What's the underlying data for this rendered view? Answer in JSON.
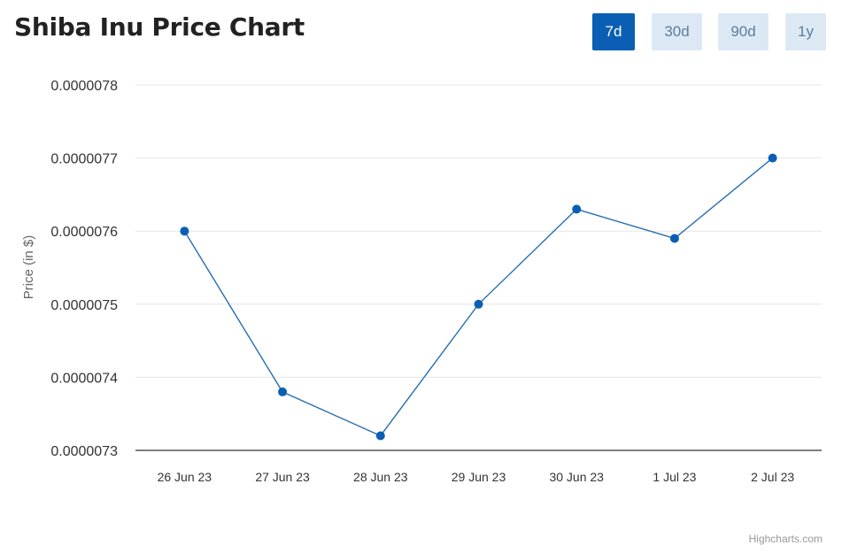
{
  "header": {
    "title": "Shiba Inu Price Chart"
  },
  "range_buttons": [
    {
      "label": "7d",
      "active": true
    },
    {
      "label": "30d",
      "active": false
    },
    {
      "label": "90d",
      "active": false
    },
    {
      "label": "1y",
      "active": false
    }
  ],
  "colors": {
    "line": "#2a6fb0",
    "marker": "#0a5fb4",
    "active_button": "#0a5fb4",
    "inactive_button": "#dce9f5"
  },
  "chart_data": {
    "type": "line",
    "title": "Shiba Inu Price Chart",
    "xlabel": "",
    "ylabel": "Price (in $)",
    "categories": [
      "26 Jun 23",
      "27 Jun 23",
      "28 Jun 23",
      "29 Jun 23",
      "30 Jun 23",
      "1 Jul 23",
      "2 Jul 23"
    ],
    "series": [
      {
        "values": [
          7.6e-06,
          7.38e-06,
          7.32e-06,
          7.5e-06,
          7.63e-06,
          7.59e-06,
          7.7e-06
        ]
      }
    ],
    "ylim": [
      7.3e-06,
      7.8e-06
    ],
    "yticks": [
      "0.0000073",
      "0.0000074",
      "0.0000075",
      "0.0000076",
      "0.0000077",
      "0.0000078"
    ],
    "grid": true,
    "legend": "none"
  },
  "credit": "Highcharts.com"
}
